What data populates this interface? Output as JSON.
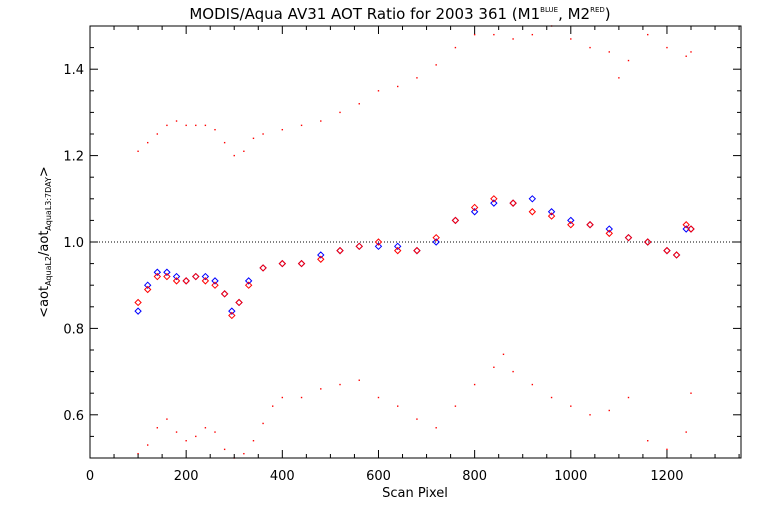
{
  "chart_data": {
    "type": "scatter",
    "title_main": "MODIS/Aqua AV31 AOT Ratio for 2003 361 (M1",
    "title_sup1": "BLUE",
    "title_mid": ", M2",
    "title_sup2": "RED",
    "title_end": ")",
    "xlabel": "Scan Pixel",
    "ylabel": {
      "prefix": "<aot",
      "sub1": "AquaL2",
      "mid": "/aot",
      "sub2": "AquaL3:7DAY",
      "suffix": ">"
    },
    "xlim": [
      0,
      1354
    ],
    "ylim": [
      0.5,
      1.5
    ],
    "xticks": [
      0,
      200,
      400,
      600,
      800,
      1000,
      1200
    ],
    "yticks": [
      0.6,
      0.8,
      1.0,
      1.2,
      1.4
    ],
    "ytick_labels": [
      "0.6",
      "0.8",
      "1.0",
      "1.2",
      "1.4"
    ],
    "reference_line": 1.0,
    "colors": {
      "M1": "#0000ff",
      "M2": "#ff0000",
      "axes": "#000000"
    },
    "series": [
      {
        "key": "M1",
        "marker": "diamond",
        "color": "#0000ff",
        "x": [
          100,
          120,
          140,
          160,
          180,
          200,
          220,
          240,
          260,
          280,
          295,
          310,
          330,
          360,
          400,
          440,
          480,
          520,
          560,
          600,
          640,
          680,
          720,
          760,
          800,
          840,
          880,
          920,
          960,
          1000,
          1040,
          1080,
          1120,
          1160,
          1200,
          1220,
          1240,
          1250
        ],
        "y": [
          0.84,
          0.9,
          0.93,
          0.93,
          0.92,
          0.91,
          0.92,
          0.92,
          0.91,
          0.88,
          0.84,
          0.86,
          0.91,
          0.94,
          0.95,
          0.95,
          0.97,
          0.98,
          0.99,
          0.99,
          0.99,
          0.98,
          1.0,
          1.05,
          1.07,
          1.09,
          1.09,
          1.1,
          1.07,
          1.05,
          1.04,
          1.03,
          1.01,
          1.0,
          0.98,
          0.97,
          1.03,
          1.03
        ]
      },
      {
        "key": "M2",
        "marker": "diamond",
        "color": "#ff0000",
        "x": [
          100,
          120,
          140,
          160,
          180,
          200,
          220,
          240,
          260,
          280,
          295,
          310,
          330,
          360,
          400,
          440,
          480,
          520,
          560,
          600,
          640,
          680,
          720,
          760,
          800,
          840,
          880,
          920,
          960,
          1000,
          1040,
          1080,
          1120,
          1160,
          1200,
          1220,
          1240,
          1250
        ],
        "y": [
          0.86,
          0.89,
          0.92,
          0.92,
          0.91,
          0.91,
          0.92,
          0.91,
          0.9,
          0.88,
          0.83,
          0.86,
          0.9,
          0.94,
          0.95,
          0.95,
          0.96,
          0.98,
          0.99,
          1.0,
          0.98,
          0.98,
          1.01,
          1.05,
          1.08,
          1.1,
          1.09,
          1.07,
          1.06,
          1.04,
          1.04,
          1.02,
          1.01,
          1.0,
          0.98,
          0.97,
          1.04,
          1.03
        ]
      },
      {
        "key": "M2-upper-bound",
        "marker": "dot",
        "color": "#ff0000",
        "x": [
          100,
          120,
          140,
          160,
          180,
          200,
          220,
          240,
          260,
          280,
          300,
          320,
          340,
          360,
          400,
          440,
          480,
          520,
          560,
          600,
          640,
          680,
          720,
          760,
          800,
          840,
          880,
          920,
          960,
          1000,
          1040,
          1080,
          1100,
          1120,
          1160,
          1200,
          1240,
          1250
        ],
        "y": [
          1.21,
          1.23,
          1.25,
          1.27,
          1.28,
          1.27,
          1.27,
          1.27,
          1.26,
          1.23,
          1.2,
          1.21,
          1.24,
          1.25,
          1.26,
          1.27,
          1.28,
          1.3,
          1.32,
          1.35,
          1.36,
          1.38,
          1.41,
          1.45,
          1.48,
          1.48,
          1.47,
          1.48,
          1.5,
          1.47,
          1.45,
          1.44,
          1.38,
          1.42,
          1.48,
          1.45,
          1.43,
          1.44
        ]
      },
      {
        "key": "M2-lower-bound",
        "marker": "dot",
        "color": "#ff0000",
        "x": [
          100,
          120,
          140,
          160,
          180,
          200,
          220,
          240,
          260,
          280,
          300,
          320,
          340,
          360,
          380,
          400,
          440,
          480,
          520,
          560,
          600,
          640,
          680,
          720,
          760,
          800,
          840,
          860,
          880,
          920,
          960,
          1000,
          1040,
          1080,
          1120,
          1160,
          1200,
          1240,
          1250
        ],
        "y": [
          0.51,
          0.53,
          0.57,
          0.59,
          0.56,
          0.54,
          0.55,
          0.57,
          0.56,
          0.52,
          0.5,
          0.51,
          0.54,
          0.58,
          0.62,
          0.64,
          0.64,
          0.66,
          0.67,
          0.68,
          0.64,
          0.62,
          0.59,
          0.57,
          0.62,
          0.67,
          0.71,
          0.74,
          0.7,
          0.67,
          0.64,
          0.62,
          0.6,
          0.61,
          0.64,
          0.54,
          0.52,
          0.56,
          0.65
        ]
      }
    ]
  }
}
